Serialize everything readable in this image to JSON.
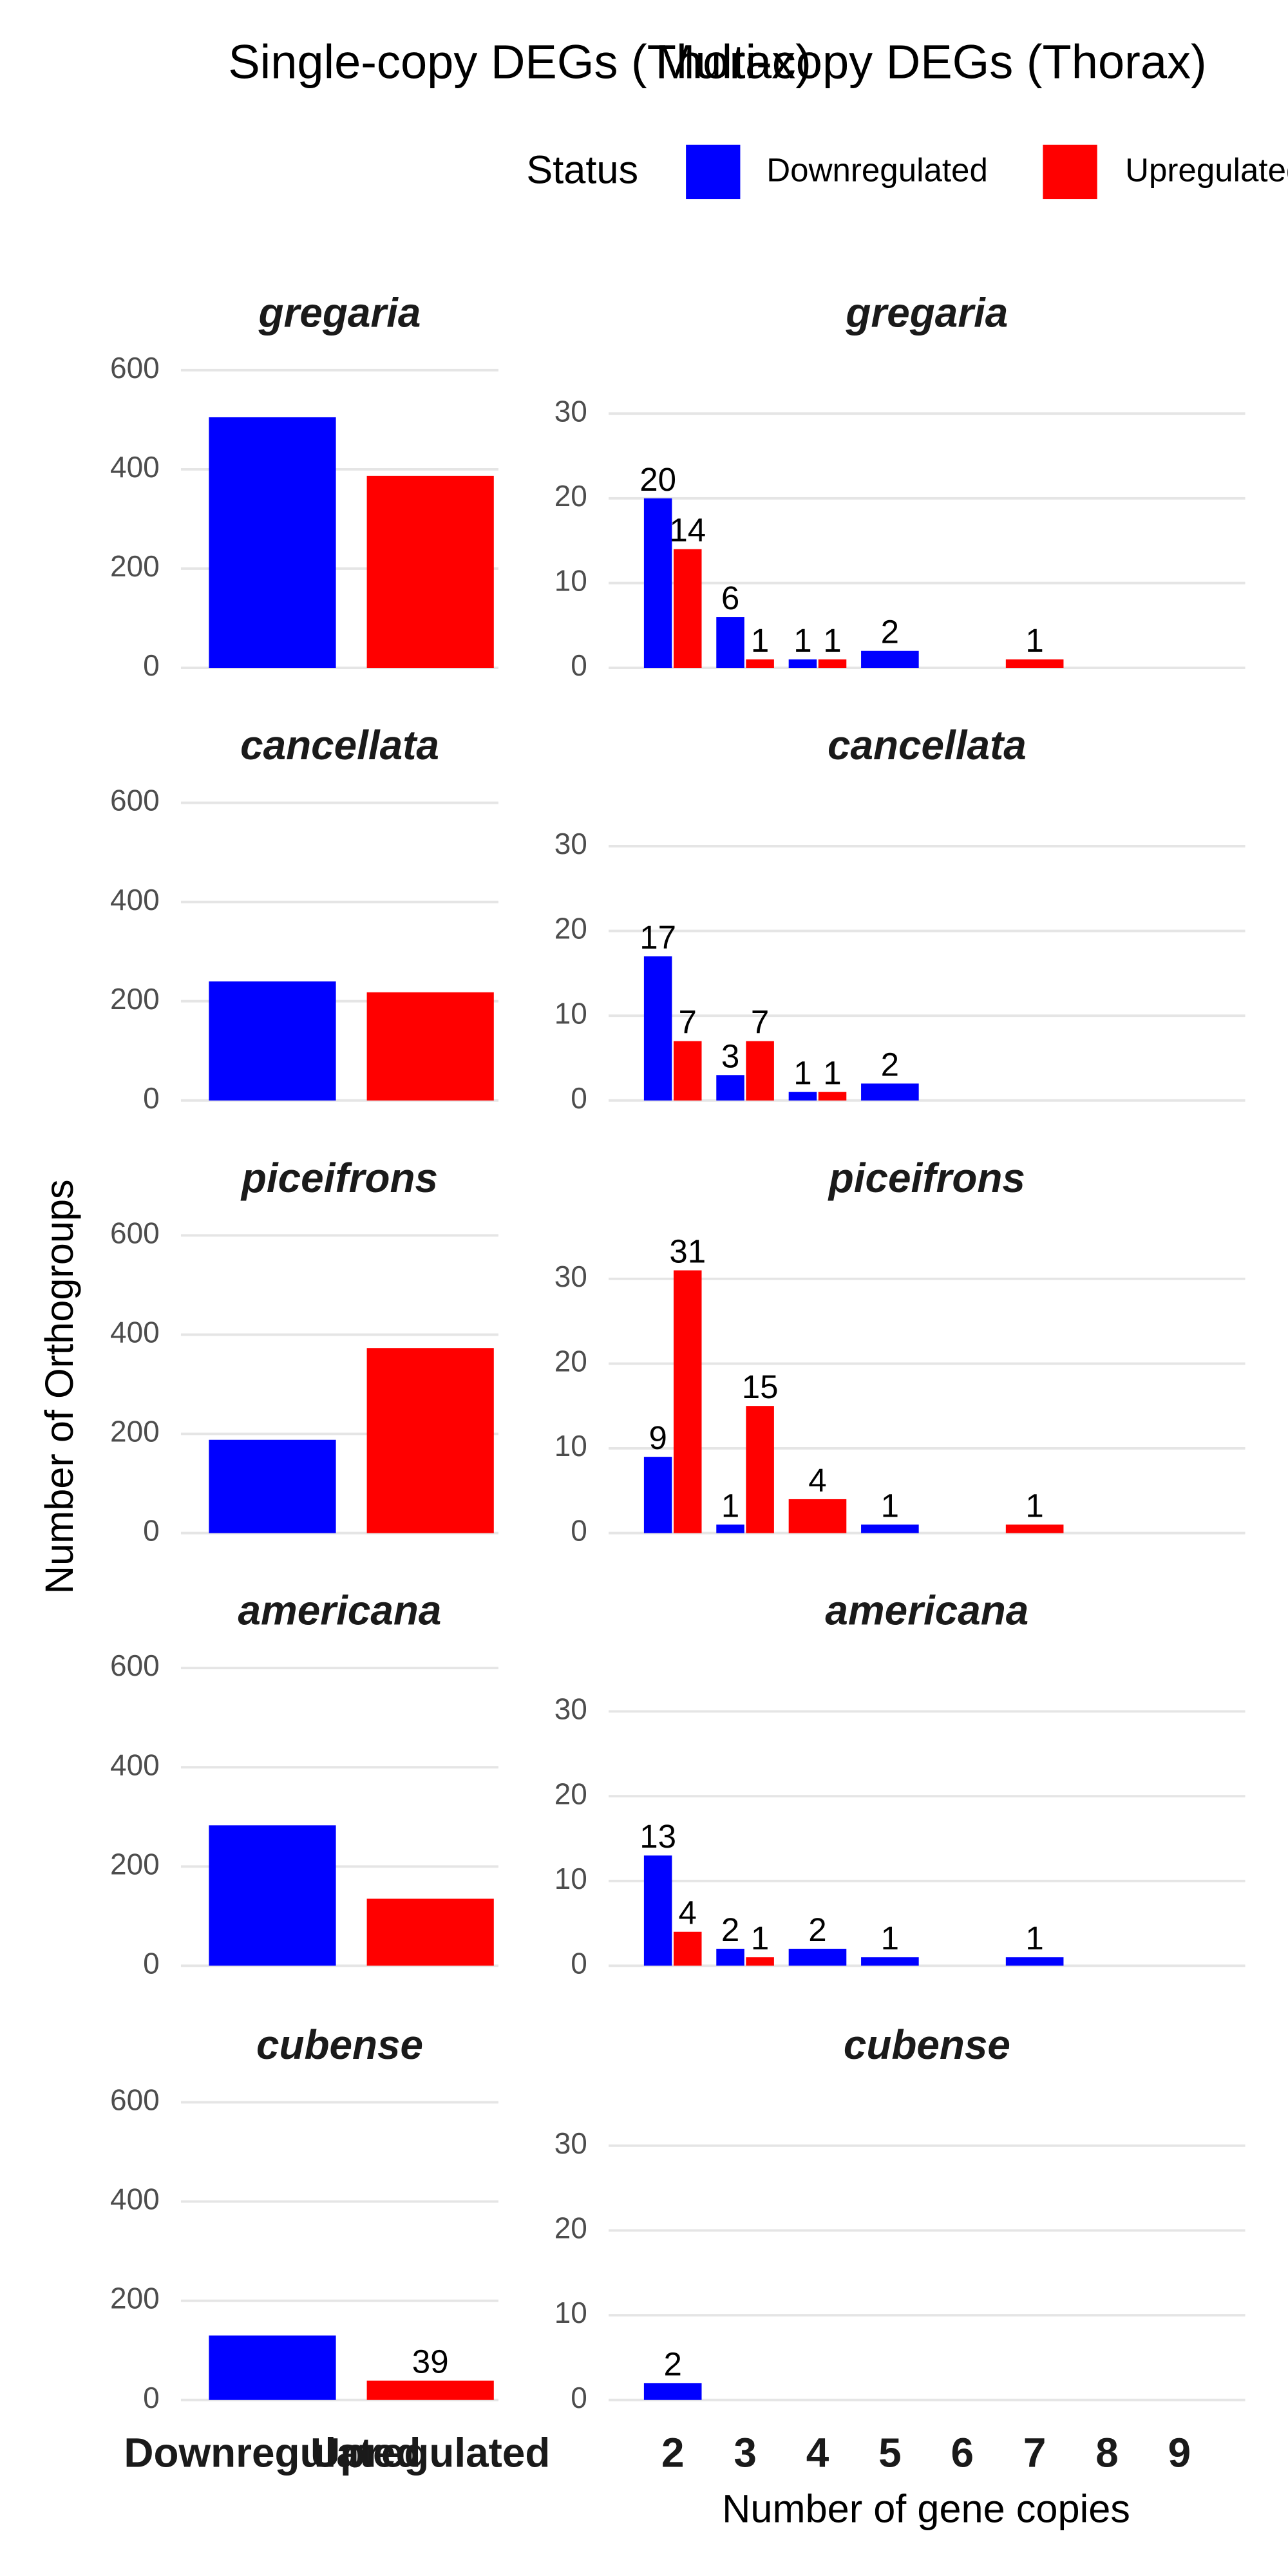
{
  "figure": {
    "titles": [
      "Single-copy DEGs (Thorax)",
      "Multi-copy DEGs (Thorax)"
    ],
    "legend_title": "Status",
    "y_label": "Number of Orthogroups",
    "x_label": "Number of gene copies",
    "grid": true
  },
  "chart_data": [
    {
      "type": "bar",
      "title": "gregaria",
      "categories": [
        "Downregulated",
        "Upregulated"
      ],
      "values": [
        505,
        387
      ],
      "colors": [
        "#0000ff",
        "#ff0000"
      ],
      "ylim": [
        0,
        615
      ],
      "yticks": [
        0,
        200,
        400,
        600
      ]
    },
    {
      "type": "bar",
      "title": "cancellata",
      "categories": [
        "Downregulated",
        "Upregulated"
      ],
      "values": [
        240,
        218
      ],
      "colors": [
        "#0000ff",
        "#ff0000"
      ],
      "ylim": [
        0,
        615
      ],
      "yticks": [
        0,
        200,
        400,
        600
      ]
    },
    {
      "type": "bar",
      "title": "piceifrons",
      "categories": [
        "Downregulated",
        "Upregulated"
      ],
      "values": [
        188,
        373
      ],
      "colors": [
        "#0000ff",
        "#ff0000"
      ],
      "ylim": [
        0,
        615
      ],
      "yticks": [
        0,
        200,
        400,
        600
      ]
    },
    {
      "type": "bar",
      "title": "americana",
      "categories": [
        "Downregulated",
        "Upregulated"
      ],
      "values": [
        283,
        135
      ],
      "colors": [
        "#0000ff",
        "#ff0000"
      ],
      "ylim": [
        0,
        615
      ],
      "yticks": [
        0,
        200,
        400,
        600
      ]
    },
    {
      "type": "bar",
      "title": "cubense",
      "categories": [
        "Downregulated",
        "Upregulated"
      ],
      "values": [
        130,
        39
      ],
      "value_labels": [
        null,
        "39"
      ],
      "colors": [
        "#0000ff",
        "#ff0000"
      ],
      "ylim": [
        0,
        615
      ],
      "yticks": [
        0,
        200,
        400,
        600
      ]
    },
    {
      "type": "grouped_bar",
      "title": "gregaria",
      "categories": [
        2,
        3,
        4,
        5,
        6,
        7,
        8,
        9
      ],
      "data_labels": true,
      "ylim": [
        0,
        36
      ],
      "yticks": [
        0,
        10,
        20,
        30
      ],
      "series": [
        {
          "name": "Downregulated",
          "color": "#0000ff",
          "values": [
            20,
            6,
            1,
            2,
            null,
            null,
            null,
            null
          ]
        },
        {
          "name": "Upregulated",
          "color": "#ff0000",
          "values": [
            14,
            1,
            1,
            null,
            null,
            1,
            null,
            null
          ]
        }
      ]
    },
    {
      "type": "grouped_bar",
      "title": "cancellata",
      "categories": [
        2,
        3,
        4,
        5,
        6,
        7,
        8,
        9
      ],
      "data_labels": true,
      "ylim": [
        0,
        36
      ],
      "yticks": [
        0,
        10,
        20,
        30
      ],
      "series": [
        {
          "name": "Downregulated",
          "color": "#0000ff",
          "values": [
            17,
            3,
            1,
            2,
            null,
            null,
            null,
            null
          ]
        },
        {
          "name": "Upregulated",
          "color": "#ff0000",
          "values": [
            7,
            7,
            1,
            null,
            null,
            null,
            null,
            null
          ]
        }
      ]
    },
    {
      "type": "grouped_bar",
      "title": "piceifrons",
      "categories": [
        2,
        3,
        4,
        5,
        6,
        7,
        8,
        9
      ],
      "data_labels": true,
      "ylim": [
        0,
        36
      ],
      "yticks": [
        0,
        10,
        20,
        30
      ],
      "series": [
        {
          "name": "Downregulated",
          "color": "#0000ff",
          "values": [
            9,
            1,
            null,
            1,
            null,
            null,
            null,
            null
          ]
        },
        {
          "name": "Upregulated",
          "color": "#ff0000",
          "values": [
            31,
            15,
            4,
            null,
            null,
            1,
            null,
            null
          ]
        }
      ]
    },
    {
      "type": "grouped_bar",
      "title": "americana",
      "categories": [
        2,
        3,
        4,
        5,
        6,
        7,
        8,
        9
      ],
      "data_labels": true,
      "ylim": [
        0,
        36
      ],
      "yticks": [
        0,
        10,
        20,
        30
      ],
      "series": [
        {
          "name": "Downregulated",
          "color": "#0000ff",
          "values": [
            13,
            2,
            2,
            1,
            null,
            1,
            null,
            null
          ]
        },
        {
          "name": "Upregulated",
          "color": "#ff0000",
          "values": [
            4,
            1,
            null,
            null,
            null,
            null,
            null,
            null
          ]
        }
      ]
    },
    {
      "type": "grouped_bar",
      "title": "cubense",
      "categories": [
        2,
        3,
        4,
        5,
        6,
        7,
        8,
        9
      ],
      "data_labels": true,
      "ylim": [
        0,
        36
      ],
      "yticks": [
        0,
        10,
        20,
        30
      ],
      "series": [
        {
          "name": "Downregulated",
          "color": "#0000ff",
          "values": [
            2,
            null,
            null,
            null,
            null,
            null,
            null,
            null
          ]
        },
        {
          "name": "Upregulated",
          "color": "#ff0000",
          "values": [
            null,
            null,
            null,
            null,
            null,
            null,
            null,
            null
          ]
        }
      ]
    }
  ]
}
